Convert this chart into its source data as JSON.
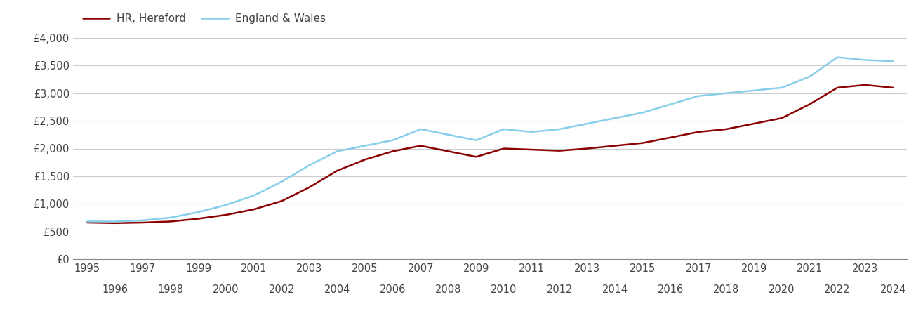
{
  "hereford_years": [
    1995,
    1996,
    1997,
    1998,
    1999,
    2000,
    2001,
    2002,
    2003,
    2004,
    2005,
    2006,
    2007,
    2008,
    2009,
    2010,
    2011,
    2012,
    2013,
    2014,
    2015,
    2016,
    2017,
    2018,
    2019,
    2020,
    2021,
    2022,
    2023,
    2024
  ],
  "hereford_values": [
    660,
    650,
    660,
    680,
    730,
    800,
    900,
    1050,
    1300,
    1600,
    1800,
    1950,
    2050,
    1950,
    1850,
    2000,
    1980,
    1960,
    2000,
    2050,
    2100,
    2200,
    2300,
    2350,
    2450,
    2550,
    2800,
    3100,
    3150,
    3100
  ],
  "england_years": [
    1995,
    1996,
    1997,
    1998,
    1999,
    2000,
    2001,
    2002,
    2003,
    2004,
    2005,
    2006,
    2007,
    2008,
    2009,
    2010,
    2011,
    2012,
    2013,
    2014,
    2015,
    2016,
    2017,
    2018,
    2019,
    2020,
    2021,
    2022,
    2023,
    2024
  ],
  "england_values": [
    680,
    680,
    700,
    750,
    850,
    980,
    1150,
    1400,
    1700,
    1950,
    2050,
    2150,
    2350,
    2250,
    2150,
    2350,
    2300,
    2350,
    2450,
    2550,
    2650,
    2800,
    2950,
    3000,
    3050,
    3100,
    3300,
    3650,
    3600,
    3580
  ],
  "hereford_color": "#8B0000",
  "england_color": "#87CEEB",
  "hereford_label": "HR, Hereford",
  "england_label": "England & Wales",
  "ylim": [
    0,
    4000
  ],
  "yticks": [
    0,
    500,
    1000,
    1500,
    2000,
    2500,
    3000,
    3500,
    4000
  ],
  "ytick_labels": [
    "£0",
    "£500",
    "£1,000",
    "£1,500",
    "£2,000",
    "£2,500",
    "£3,000",
    "£3,500",
    "£4,000"
  ],
  "xlim_min": 1994.5,
  "xlim_max": 2024.5,
  "background_color": "#ffffff",
  "grid_color": "#cccccc",
  "line_width": 1.8,
  "legend_fontsize": 11,
  "tick_fontsize": 10.5,
  "odd_years": [
    1995,
    1997,
    1999,
    2001,
    2003,
    2005,
    2007,
    2009,
    2011,
    2013,
    2015,
    2017,
    2019,
    2021,
    2023
  ],
  "even_years": [
    1996,
    1998,
    2000,
    2002,
    2004,
    2006,
    2008,
    2010,
    2012,
    2014,
    2016,
    2018,
    2020,
    2022,
    2024
  ]
}
